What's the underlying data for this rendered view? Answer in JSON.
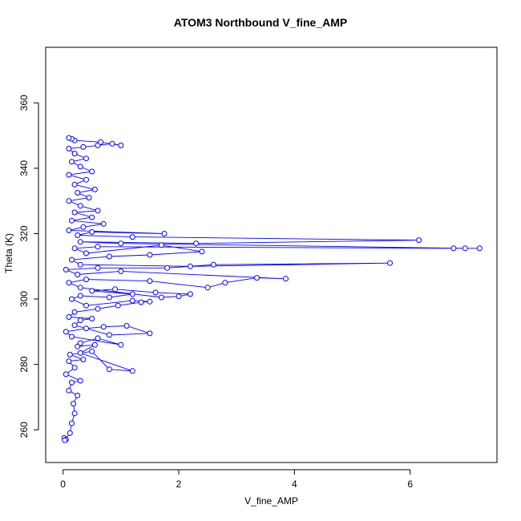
{
  "chart_data": {
    "type": "line",
    "title": "ATOM3 Northbound V_fine_AMP",
    "xlabel": "V_fine_AMP",
    "ylabel": "Theta (K)",
    "xlim": [
      -0.3,
      7.5
    ],
    "ylim": [
      250,
      377
    ],
    "xticks": [
      "0",
      "2",
      "4",
      "6"
    ],
    "yticks": [
      "260",
      "280",
      "300",
      "320",
      "340",
      "360"
    ],
    "grid": false,
    "legend": "none",
    "series_color": "#0000ff",
    "markers": "open-circle",
    "series": [
      {
        "values": [
          [
            0.02,
            257.5
          ],
          [
            0.05,
            257.0
          ],
          [
            0.03,
            256.8
          ],
          [
            0.12,
            259.0
          ],
          [
            0.15,
            262.0
          ],
          [
            0.2,
            265.0
          ],
          [
            0.18,
            268.0
          ],
          [
            0.25,
            270.5
          ],
          [
            0.1,
            272.0
          ],
          [
            0.15,
            274.5
          ],
          [
            0.3,
            275.0
          ],
          [
            0.05,
            277.0
          ],
          [
            0.2,
            279.0
          ],
          [
            0.1,
            281.0
          ],
          [
            0.35,
            281.5
          ],
          [
            0.12,
            283.0
          ],
          [
            0.5,
            284.0
          ],
          [
            0.8,
            278.5
          ],
          [
            1.2,
            278.0
          ],
          [
            0.3,
            283.5
          ],
          [
            0.55,
            286.0
          ],
          [
            0.25,
            285.5
          ],
          [
            0.3,
            286.5
          ],
          [
            0.6,
            288.0
          ],
          [
            1.0,
            286.0
          ],
          [
            0.15,
            288.5
          ],
          [
            0.05,
            290.0
          ],
          [
            0.4,
            291.0
          ],
          [
            0.7,
            291.5
          ],
          [
            1.1,
            291.8
          ],
          [
            1.5,
            289.5
          ],
          [
            0.8,
            289.0
          ],
          [
            0.2,
            292.0
          ],
          [
            0.3,
            293.5
          ],
          [
            0.5,
            294.0
          ],
          [
            0.1,
            294.5
          ],
          [
            0.2,
            296.0
          ],
          [
            0.6,
            297.0
          ],
          [
            0.95,
            298.0
          ],
          [
            1.35,
            299.0
          ],
          [
            1.5,
            299.2
          ],
          [
            1.2,
            299.5
          ],
          [
            0.4,
            298.0
          ],
          [
            0.15,
            300.0
          ],
          [
            0.3,
            301.0
          ],
          [
            0.8,
            300.5
          ],
          [
            1.2,
            301.5
          ],
          [
            0.5,
            302.5
          ],
          [
            0.9,
            303.0
          ],
          [
            1.6,
            302.0
          ],
          [
            2.2,
            301.5
          ],
          [
            2.0,
            300.8
          ],
          [
            1.7,
            300.5
          ],
          [
            0.3,
            303.5
          ],
          [
            0.1,
            305.0
          ],
          [
            0.4,
            306.0
          ],
          [
            1.5,
            305.5
          ],
          [
            2.5,
            303.5
          ],
          [
            2.8,
            305.0
          ],
          [
            3.35,
            306.5
          ],
          [
            3.85,
            306.2
          ],
          [
            1.0,
            308.5
          ],
          [
            0.25,
            307.5
          ],
          [
            0.05,
            309.0
          ],
          [
            0.6,
            309.5
          ],
          [
            1.8,
            309.5
          ],
          [
            2.6,
            310.5
          ],
          [
            5.65,
            311.0
          ],
          [
            2.2,
            310.0
          ],
          [
            0.3,
            310.5
          ],
          [
            0.15,
            312.0
          ],
          [
            0.8,
            313.0
          ],
          [
            1.5,
            313.5
          ],
          [
            2.4,
            314.5
          ],
          [
            1.7,
            316.5
          ],
          [
            0.4,
            314.0
          ],
          [
            0.2,
            315.5
          ],
          [
            0.6,
            316.0
          ],
          [
            6.75,
            315.5
          ],
          [
            7.2,
            315.5
          ],
          [
            6.95,
            315.5
          ],
          [
            1.0,
            317.0
          ],
          [
            0.3,
            317.5
          ],
          [
            2.3,
            317.0
          ],
          [
            6.15,
            318.0
          ],
          [
            1.2,
            319.0
          ],
          [
            0.25,
            319.5
          ],
          [
            0.5,
            320.5
          ],
          [
            1.75,
            320.0
          ],
          [
            0.1,
            321.0
          ],
          [
            0.35,
            322.0
          ],
          [
            0.7,
            323.0
          ],
          [
            0.15,
            324.0
          ],
          [
            0.5,
            325.0
          ],
          [
            0.2,
            326.5
          ],
          [
            0.6,
            327.0
          ],
          [
            0.3,
            328.5
          ],
          [
            0.1,
            330.0
          ],
          [
            0.45,
            331.0
          ],
          [
            0.25,
            332.5
          ],
          [
            0.55,
            333.5
          ],
          [
            0.2,
            335.0
          ],
          [
            0.4,
            336.5
          ],
          [
            0.1,
            338.0
          ],
          [
            0.5,
            339.0
          ],
          [
            0.3,
            340.5
          ],
          [
            0.15,
            342.0
          ],
          [
            0.4,
            343.0
          ],
          [
            0.2,
            344.5
          ],
          [
            0.1,
            346.0
          ],
          [
            0.35,
            346.5
          ],
          [
            0.6,
            347.0
          ],
          [
            0.85,
            347.5
          ],
          [
            1.0,
            347.0
          ],
          [
            0.65,
            348.0
          ],
          [
            0.2,
            348.5
          ],
          [
            0.15,
            349.0
          ],
          [
            0.1,
            349.3
          ]
        ]
      }
    ]
  }
}
